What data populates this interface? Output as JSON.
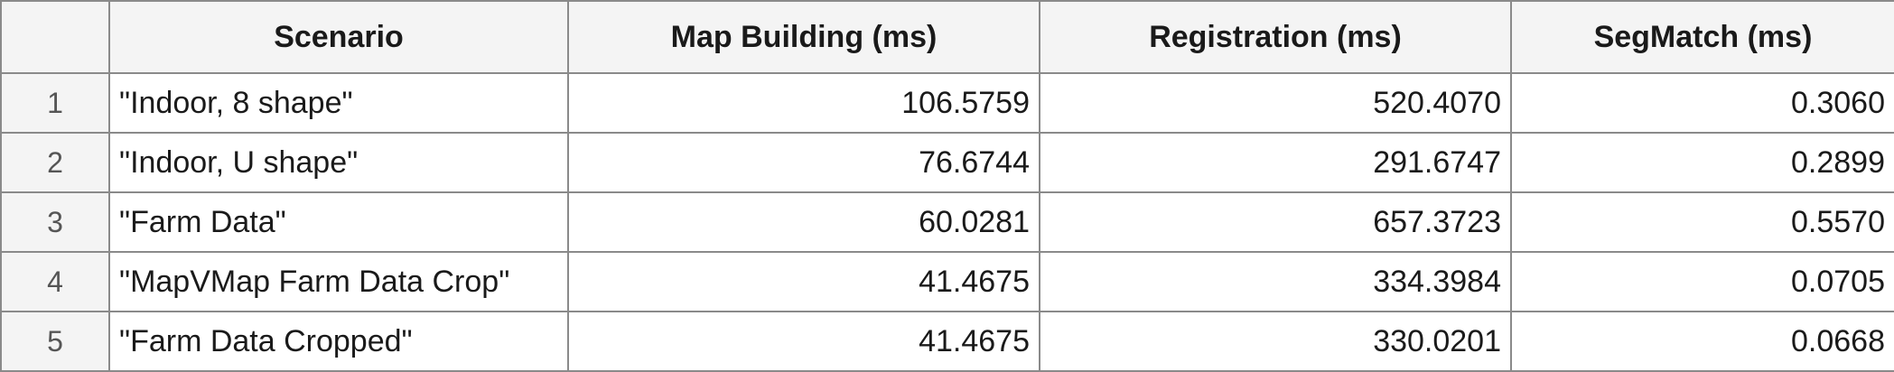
{
  "table": {
    "headers": {
      "index": "",
      "scenario": "Scenario",
      "map_building": "Map Building (ms)",
      "registration": "Registration (ms)",
      "segmatch": "SegMatch (ms)"
    },
    "rows": [
      {
        "index": "1",
        "scenario": "\"Indoor, 8 shape\"",
        "map_building": "106.5759",
        "registration": "520.4070",
        "segmatch": "0.3060"
      },
      {
        "index": "2",
        "scenario": "\"Indoor, U shape\"",
        "map_building": "76.6744",
        "registration": "291.6747",
        "segmatch": "0.2899"
      },
      {
        "index": "3",
        "scenario": "\"Farm Data\"",
        "map_building": "60.0281",
        "registration": "657.3723",
        "segmatch": "0.5570"
      },
      {
        "index": "4",
        "scenario": "\"MapVMap Farm Data Crop\"",
        "map_building": "41.4675",
        "registration": "334.3984",
        "segmatch": "0.0705"
      },
      {
        "index": "5",
        "scenario": "\"Farm Data Cropped\"",
        "map_building": "41.4675",
        "registration": "330.0201",
        "segmatch": "0.0668"
      }
    ]
  }
}
